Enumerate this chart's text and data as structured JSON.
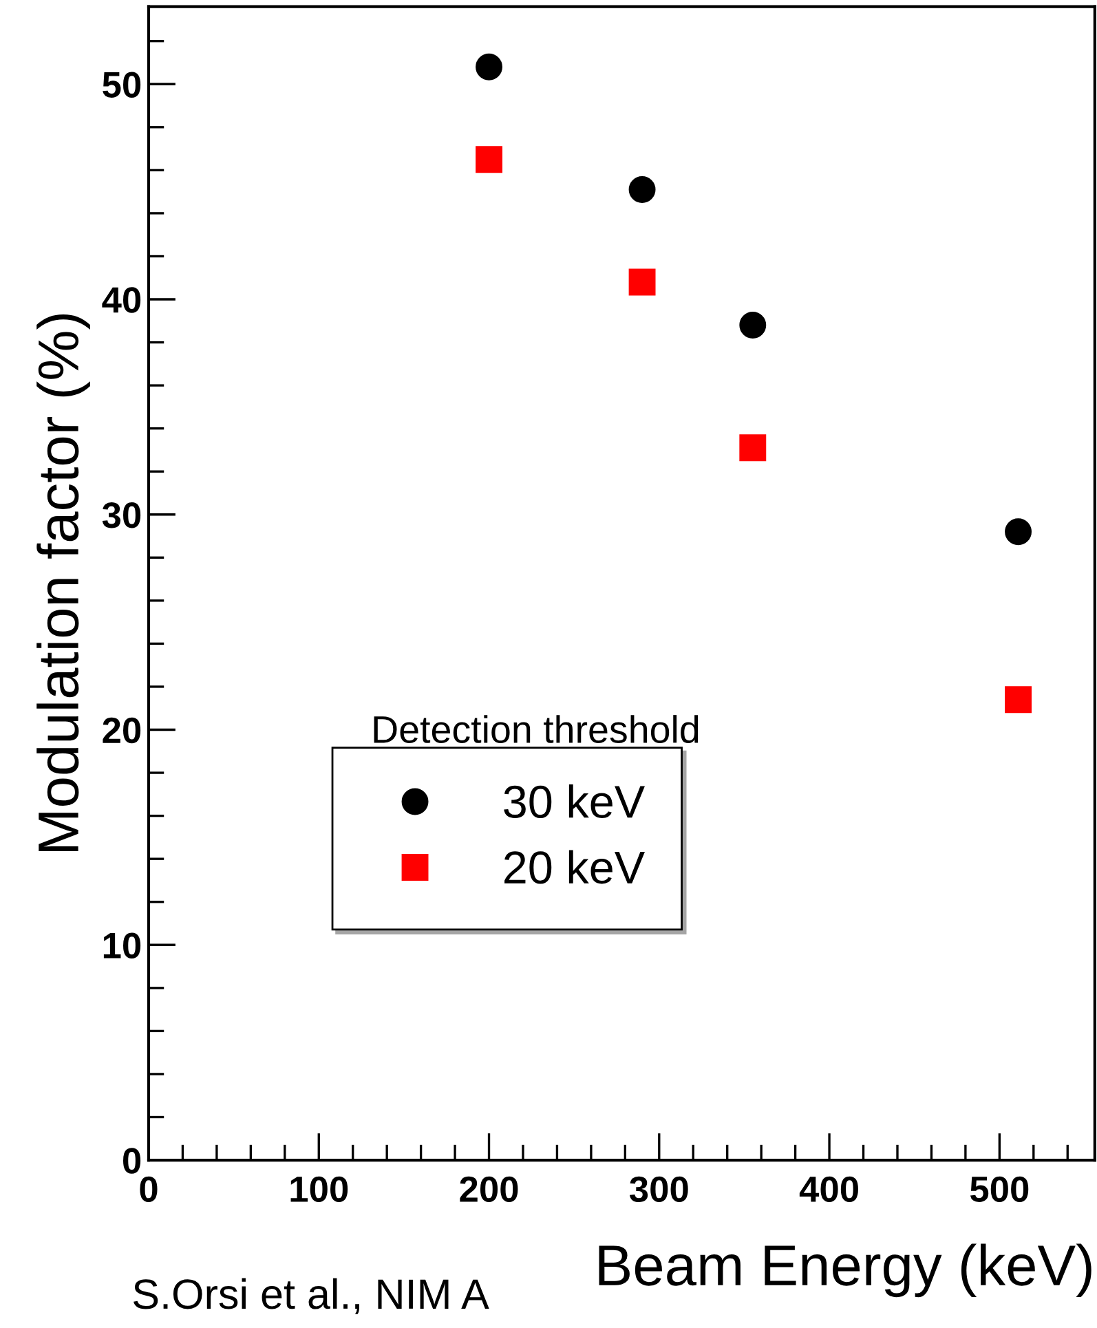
{
  "chart_data": {
    "type": "scatter",
    "xlabel": "Beam Energy (keV)",
    "ylabel": "Modulation factor (%)",
    "legend_title": "Detection threshold",
    "legend": "bottom left",
    "grid": false,
    "series": [
      {
        "name": "30 keV",
        "color": "#000000",
        "marker": "circle",
        "x": [
          200,
          290,
          355,
          511
        ],
        "values": [
          50.8,
          45.1,
          38.8,
          29.2
        ]
      },
      {
        "name": "20 keV",
        "color": "#ff0000",
        "marker": "square",
        "x": [
          200,
          290,
          355,
          511
        ],
        "values": [
          46.5,
          40.8,
          33.1,
          21.4
        ]
      }
    ],
    "xlim": [
      0,
      556
    ],
    "ylim": [
      0,
      53.6
    ],
    "xticks": [
      0,
      {
        "value": 20,
        "label": null
      },
      {
        "value": 40,
        "label": null
      },
      {
        "value": 60,
        "label": null
      },
      {
        "value": 80,
        "label": null
      },
      100,
      {
        "value": 120,
        "label": null
      },
      {
        "value": 140,
        "label": null
      },
      {
        "value": 160,
        "label": null
      },
      {
        "value": 180,
        "label": null
      },
      200,
      {
        "value": 220,
        "label": null
      },
      {
        "value": 240,
        "label": null
      },
      {
        "value": 260,
        "label": null
      },
      {
        "value": 280,
        "label": null
      },
      300,
      {
        "value": 320,
        "label": null
      },
      {
        "value": 340,
        "label": null
      },
      {
        "value": 360,
        "label": null
      },
      {
        "value": 380,
        "label": null
      },
      400,
      {
        "value": 420,
        "label": null
      },
      {
        "value": 440,
        "label": null
      },
      {
        "value": 460,
        "label": null
      },
      {
        "value": 480,
        "label": null
      },
      500,
      {
        "value": 520,
        "label": null
      },
      {
        "value": 540,
        "label": null
      }
    ],
    "yticks": [
      0,
      {
        "value": 2,
        "label": null
      },
      {
        "value": 4,
        "label": null
      },
      {
        "value": 6,
        "label": null
      },
      {
        "value": 8,
        "label": null
      },
      10,
      {
        "value": 12,
        "label": null
      },
      {
        "value": 14,
        "label": null
      },
      {
        "value": 16,
        "label": null
      },
      {
        "value": 18,
        "label": null
      },
      20,
      {
        "value": 22,
        "label": null
      },
      {
        "value": 24,
        "label": null
      },
      {
        "value": 26,
        "label": null
      },
      {
        "value": 28,
        "label": null
      },
      30,
      {
        "value": 32,
        "label": null
      },
      {
        "value": 34,
        "label": null
      },
      {
        "value": 36,
        "label": null
      },
      {
        "value": 38,
        "label": null
      },
      40,
      {
        "value": 42,
        "label": null
      },
      {
        "value": 44,
        "label": null
      },
      {
        "value": 46,
        "label": null
      },
      {
        "value": 48,
        "label": null
      },
      50,
      {
        "value": 52,
        "label": null
      }
    ],
    "annotations": [
      "S.Orsi et al., NIM A"
    ]
  }
}
